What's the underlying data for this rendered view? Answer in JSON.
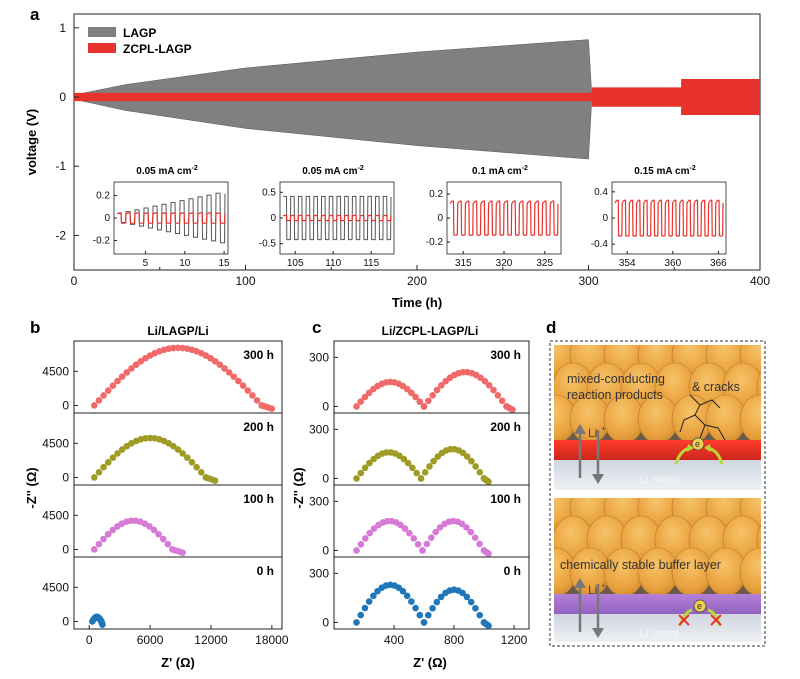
{
  "panels": {
    "a": "a",
    "b": "b",
    "c": "c",
    "d": "d"
  },
  "chart_data": [
    {
      "id": "a",
      "type": "line",
      "title": "",
      "xlabel": "Time (h)",
      "ylabel": "voltage (V)",
      "xlim": [
        0,
        400
      ],
      "ylim": [
        -2.5,
        1.2
      ],
      "xticks": [
        "0",
        "100",
        "200",
        "300",
        "400"
      ],
      "xtick_values": [
        0,
        100,
        200,
        300,
        400
      ],
      "yticks": [
        "1",
        "0",
        "-1",
        "-2"
      ],
      "ytick_values": [
        1,
        0,
        -1,
        -2
      ],
      "legend": [
        "LAGP",
        "ZCPL-LAGP"
      ],
      "series": [
        {
          "name": "LAGP",
          "color": "#808080",
          "x": [
            0,
            30,
            100,
            200,
            300,
            302
          ],
          "amplitude": [
            0.03,
            0.18,
            0.42,
            0.65,
            0.83,
            0.0
          ]
        },
        {
          "name": "ZCPL-LAGP",
          "color": "#e8322c",
          "x": [
            0,
            302,
            302,
            354,
            354,
            400
          ],
          "amplitude": [
            0.06,
            0.06,
            0.14,
            0.14,
            0.26,
            0.26
          ]
        }
      ],
      "insets": [
        {
          "title": "0.05 mA cm",
          "sup": "-2",
          "xticks": [
            "5",
            "10",
            "15"
          ],
          "xtick_values": [
            5,
            10,
            15
          ],
          "xlim": [
            1,
            15.5
          ],
          "yticks": [
            "0.2",
            "0",
            "-0.2"
          ],
          "ytick_values": [
            0.2,
            0,
            -0.2
          ],
          "ylim": [
            -0.32,
            0.32
          ],
          "cycles": [
            12,
            12
          ],
          "amp_gray": [
            0.04,
            0.22
          ],
          "amp_red": [
            0.045,
            0.05
          ]
        },
        {
          "title": "0.05 mA cm",
          "sup": "-2",
          "xticks": [
            "105",
            "110",
            "115"
          ],
          "xtick_values": [
            105,
            110,
            115
          ],
          "xlim": [
            103,
            118
          ],
          "yticks": [
            "0.5",
            "0",
            "-0.5"
          ],
          "ytick_values": [
            0.5,
            0,
            -0.5
          ],
          "ylim": [
            -0.7,
            0.7
          ],
          "cycles": [
            14,
            0
          ],
          "amp_gray": [
            0.42,
            0.42
          ],
          "amp_red": [
            0.05,
            0.05
          ]
        },
        {
          "title": "0.1 mA cm",
          "sup": "-2",
          "xticks": [
            "315",
            "320",
            "325"
          ],
          "xtick_values": [
            315,
            320,
            325
          ],
          "xlim": [
            313,
            327
          ],
          "yticks": [
            "0.2",
            "0",
            "-0.2"
          ],
          "ytick_values": [
            0.2,
            0,
            -0.2
          ],
          "ylim": [
            -0.3,
            0.3
          ],
          "cycles": [
            0,
            14
          ],
          "amp_gray": [
            0,
            0
          ],
          "amp_red": [
            0.14,
            0.14
          ]
        },
        {
          "title": "0.15 mA cm",
          "sup": "-2",
          "xticks": [
            "354",
            "360",
            "366"
          ],
          "xtick_values": [
            354,
            360,
            366
          ],
          "xlim": [
            352,
            367
          ],
          "yticks": [
            "0.4",
            "0",
            "-0.4"
          ],
          "ytick_values": [
            0.4,
            0,
            -0.4
          ],
          "ylim": [
            -0.55,
            0.55
          ],
          "cycles": [
            0,
            15
          ],
          "amp_gray": [
            0,
            0
          ],
          "amp_red": [
            0.27,
            0.27
          ]
        }
      ]
    },
    {
      "id": "b",
      "type": "scatter",
      "title": "Li/LAGP/Li",
      "xlabel": "Z' (Ω)",
      "ylabel": "-Z'' (Ω)",
      "xlim": [
        -1500,
        19000
      ],
      "ylim": [
        -1000,
        8500
      ],
      "xticks": [
        "0",
        "6000",
        "12000",
        "18000"
      ],
      "xtick_values": [
        0,
        6000,
        12000,
        18000
      ],
      "yticks": [
        "4500",
        "0"
      ],
      "ytick_values": [
        4500,
        0
      ],
      "series": [
        {
          "name": "300 h",
          "color": "#f06a6a",
          "arcs": [
            [
              500,
              17000,
              7600
            ]
          ],
          "tail": [
            17000,
            18000
          ]
        },
        {
          "name": "200 h",
          "color": "#9e9c24",
          "arcs": [
            [
              500,
              11500,
              5200
            ]
          ],
          "tail": [
            11500,
            12400
          ]
        },
        {
          "name": "100 h",
          "color": "#d67ad6",
          "arcs": [
            [
              500,
              8200,
              3800
            ]
          ],
          "tail": [
            8200,
            9200
          ]
        },
        {
          "name": "0 h",
          "color": "#1f76b8",
          "arcs": [
            [
              300,
              1200,
              600
            ]
          ],
          "tail": [
            1200,
            1300
          ]
        }
      ]
    },
    {
      "id": "c",
      "type": "scatter",
      "title": "Li/ZCPL-LAGP/Li",
      "xlabel": "Z' (Ω)",
      "ylabel": "-Z'' (Ω)",
      "xlim": [
        0,
        1300
      ],
      "ylim": [
        -40,
        400
      ],
      "xticks": [
        "400",
        "800",
        "1200"
      ],
      "xtick_values": [
        400,
        800,
        1200
      ],
      "yticks": [
        "300",
        "0"
      ],
      "ytick_values": [
        300,
        0
      ],
      "series": [
        {
          "name": "300 h",
          "color": "#f06a6a",
          "arcs": [
            [
              150,
              600,
              150
            ],
            [
              600,
              1150,
              210
            ]
          ],
          "tail": [
            1150,
            1190
          ]
        },
        {
          "name": "200 h",
          "color": "#9e9c24",
          "arcs": [
            [
              150,
              580,
              160
            ],
            [
              580,
              1000,
              180
            ]
          ],
          "tail": [
            1000,
            1030
          ]
        },
        {
          "name": "100 h",
          "color": "#d67ad6",
          "arcs": [
            [
              150,
              590,
              180
            ],
            [
              590,
              1000,
              180
            ]
          ],
          "tail": [
            1000,
            1030
          ]
        },
        {
          "name": "0 h",
          "color": "#1f76b8",
          "arcs": [
            [
              150,
              600,
              230
            ],
            [
              600,
              1000,
              200
            ]
          ],
          "tail": [
            1000,
            1030
          ]
        }
      ]
    }
  ],
  "diagram_d": {
    "top_text_1": "mixed-conducting",
    "top_text_2": "reaction products",
    "top_text_3": "& cracks",
    "li_ion": "Li",
    "li_sup": "+",
    "electron": "e",
    "electron_sup": "-",
    "metal_label": "Li metal",
    "bottom_text": "chemically stable buffer layer"
  }
}
